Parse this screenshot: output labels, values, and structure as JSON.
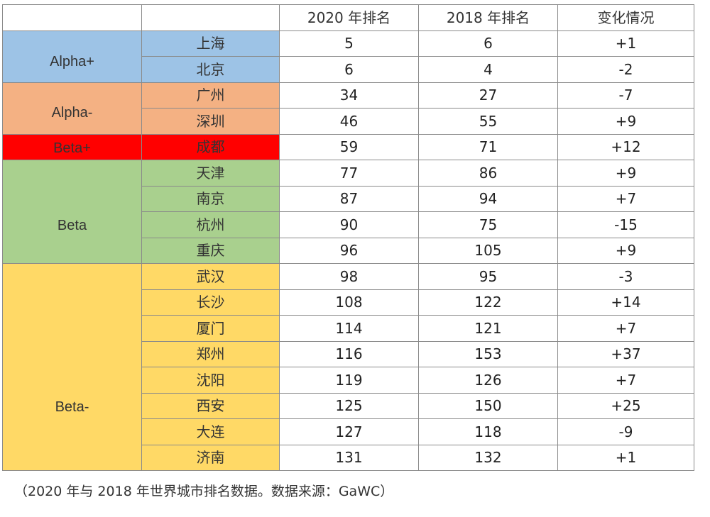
{
  "table": {
    "headers": [
      "",
      "",
      "2020 年排名",
      "2018 年排名",
      "变化情况"
    ],
    "tiers": [
      {
        "label": "Alpha+",
        "color": "#9dc3e6",
        "rows": [
          {
            "city": "上海",
            "r2020": "5",
            "r2018": "6",
            "change": "+1"
          },
          {
            "city": "北京",
            "r2020": "6",
            "r2018": "4",
            "change": "-2"
          }
        ]
      },
      {
        "label": "Alpha-",
        "color": "#f4b183",
        "rows": [
          {
            "city": "广州",
            "r2020": "34",
            "r2018": "27",
            "change": "-7"
          },
          {
            "city": "深圳",
            "r2020": "46",
            "r2018": "55",
            "change": "+9"
          }
        ]
      },
      {
        "label": "Beta+",
        "color": "#ff0000",
        "rows": [
          {
            "city": "成都",
            "r2020": "59",
            "r2018": "71",
            "change": "+12"
          }
        ]
      },
      {
        "label": "Beta",
        "color": "#a9d08e",
        "rows": [
          {
            "city": "天津",
            "r2020": "77",
            "r2018": "86",
            "change": "+9"
          },
          {
            "city": "南京",
            "r2020": "87",
            "r2018": "94",
            "change": "+7"
          },
          {
            "city": "杭州",
            "r2020": "90",
            "r2018": "75",
            "change": "-15"
          },
          {
            "city": "重庆",
            "r2020": "96",
            "r2018": "105",
            "change": "+9"
          }
        ]
      },
      {
        "label": "Beta-",
        "color": "#ffd966",
        "rows": [
          {
            "city": "武汉",
            "r2020": "98",
            "r2018": "95",
            "change": "-3"
          },
          {
            "city": "长沙",
            "r2020": "108",
            "r2018": "122",
            "change": "+14"
          },
          {
            "city": "厦门",
            "r2020": "114",
            "r2018": "121",
            "change": "+7"
          },
          {
            "city": "郑州",
            "r2020": "116",
            "r2018": "153",
            "change": "+37"
          },
          {
            "city": "沈阳",
            "r2020": "119",
            "r2018": "126",
            "change": "+7"
          },
          {
            "city": "西安",
            "r2020": "125",
            "r2018": "150",
            "change": "+25"
          },
          {
            "city": "大连",
            "r2020": "127",
            "r2018": "118",
            "change": "-9"
          },
          {
            "city": "济南",
            "r2020": "131",
            "r2018": "132",
            "change": "+1"
          }
        ]
      }
    ]
  },
  "caption": "（2020 年与 2018 年世界城市排名数据。数据来源：GaWC）"
}
